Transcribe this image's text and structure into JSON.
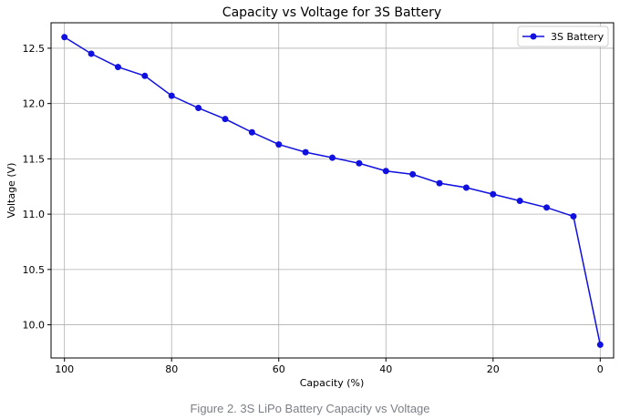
{
  "caption": "Figure 2. 3S LiPo Battery Capacity vs Voltage",
  "chart_data": {
    "type": "line",
    "title": "Capacity vs Voltage for 3S Battery",
    "xlabel": "Capacity (%)",
    "ylabel": "Voltage (V)",
    "x_reversed": true,
    "xlim": [
      102.5,
      -2.5
    ],
    "ylim": [
      9.7,
      12.73
    ],
    "x_ticks": [
      100,
      80,
      60,
      40,
      20,
      0
    ],
    "x_tick_labels": [
      "100",
      "80",
      "60",
      "40",
      "20",
      "0"
    ],
    "y_ticks": [
      10.0,
      10.5,
      11.0,
      11.5,
      12.0,
      12.5
    ],
    "y_tick_labels": [
      "10.0",
      "10.5",
      "11.0",
      "11.5",
      "12.0",
      "12.5"
    ],
    "grid": true,
    "legend_position": "top-right",
    "colors": {
      "series": "#1010e0",
      "grid": "#b0b0b0",
      "axis": "#000000"
    },
    "series": [
      {
        "name": "3S Battery",
        "x": [
          100,
          95,
          90,
          85,
          80,
          75,
          70,
          65,
          60,
          55,
          50,
          45,
          40,
          35,
          30,
          25,
          20,
          15,
          10,
          5,
          0
        ],
        "y": [
          12.6,
          12.45,
          12.33,
          12.25,
          12.07,
          11.96,
          11.86,
          11.74,
          11.63,
          11.56,
          11.51,
          11.46,
          11.39,
          11.36,
          11.28,
          11.24,
          11.18,
          11.12,
          11.06,
          10.98,
          9.82
        ]
      }
    ]
  }
}
